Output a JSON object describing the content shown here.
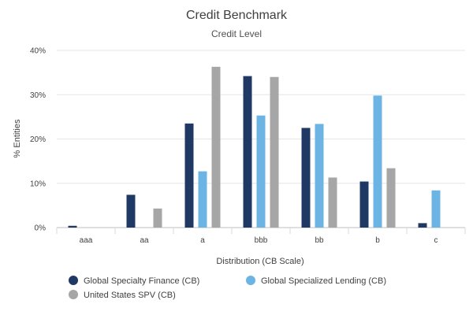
{
  "chart_data": {
    "type": "bar",
    "title": "Credit Benchmark",
    "subtitle": "Credit Level",
    "xlabel": "Distribution (CB Scale)",
    "ylabel": "% Entities",
    "ylim": [
      0,
      40
    ],
    "yticks": [
      0,
      10,
      20,
      30,
      40
    ],
    "ytick_labels": [
      "0%",
      "10%",
      "20%",
      "30%",
      "40%"
    ],
    "categories": [
      "aaa",
      "aa",
      "a",
      "bbb",
      "bb",
      "b",
      "c"
    ],
    "series": [
      {
        "name": "Global Specialty Finance (CB)",
        "color": "#1f3864",
        "values": [
          0.4,
          7.4,
          23.5,
          34.2,
          22.5,
          10.4,
          1.0
        ]
      },
      {
        "name": "Global Specialized Lending (CB)",
        "color": "#6cb4e4",
        "values": [
          0,
          0,
          12.7,
          25.3,
          23.4,
          29.8,
          8.4
        ]
      },
      {
        "name": "United States SPV (CB)",
        "color": "#a6a6a6",
        "values": [
          0,
          4.3,
          36.3,
          34.0,
          11.3,
          13.4,
          0
        ]
      }
    ],
    "grid": true,
    "legend_position": "bottom"
  }
}
